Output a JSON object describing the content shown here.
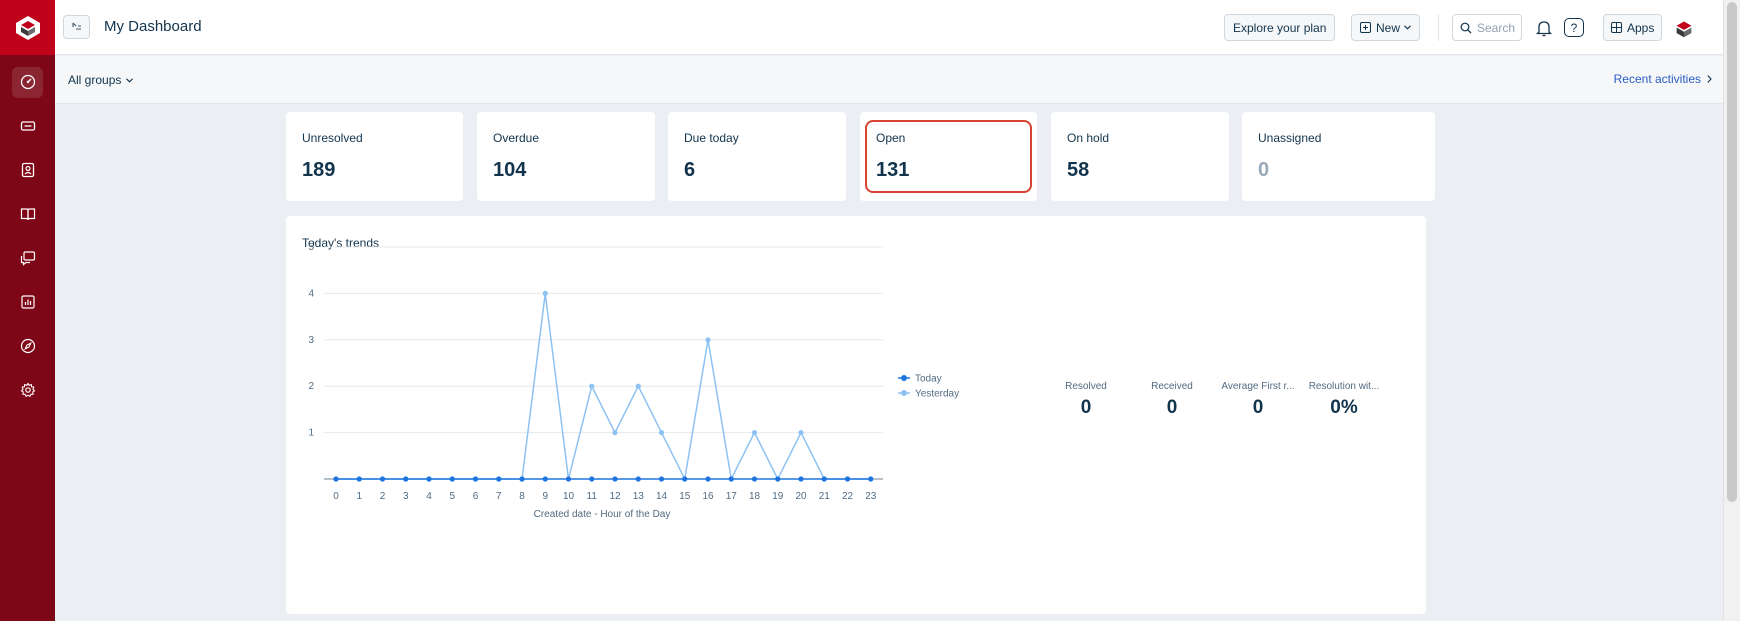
{
  "header": {
    "title": "My Dashboard",
    "explore_label": "Explore your plan",
    "new_label": "New",
    "search_placeholder": "Search",
    "help_label": "?",
    "apps_label": "Apps"
  },
  "subheader": {
    "group_filter": "All groups",
    "recent_label": "Recent activities"
  },
  "sidebar": {
    "items": [
      {
        "icon": "dashboard-icon",
        "active": true
      },
      {
        "icon": "tickets-icon"
      },
      {
        "icon": "contacts-icon"
      },
      {
        "icon": "solutions-icon"
      },
      {
        "icon": "forums-icon"
      },
      {
        "icon": "reports-icon"
      },
      {
        "icon": "discover-icon"
      },
      {
        "icon": "settings-icon"
      }
    ]
  },
  "metrics": [
    {
      "label": "Unresolved",
      "value": "189"
    },
    {
      "label": "Overdue",
      "value": "104"
    },
    {
      "label": "Due today",
      "value": "6"
    },
    {
      "label": "Open",
      "value": "131"
    },
    {
      "label": "On hold",
      "value": "58"
    },
    {
      "label": "Unassigned",
      "value": "0"
    }
  ],
  "trends": {
    "title": "Today's trends",
    "stats": [
      {
        "label": "Resolved",
        "value": "0"
      },
      {
        "label": "Received",
        "value": "0"
      },
      {
        "label": "Average First r...",
        "value": "0"
      },
      {
        "label": "Resolution wit...",
        "value": "0%"
      }
    ]
  },
  "colors": {
    "brand": "#c1021b",
    "rail": "#7d0716",
    "today": "#1f75e0",
    "yesterday": "#8ec2f2",
    "highlight": "#d7432f"
  },
  "chart_data": {
    "type": "line",
    "xlabel": "Created date - Hour of the Day",
    "ylabel": "",
    "ylim": [
      0,
      5
    ],
    "yticks": [
      1,
      2,
      3,
      4,
      5
    ],
    "x": [
      0,
      1,
      2,
      3,
      4,
      5,
      6,
      7,
      8,
      9,
      10,
      11,
      12,
      13,
      14,
      15,
      16,
      17,
      18,
      19,
      20,
      21,
      22,
      23
    ],
    "series": [
      {
        "name": "Today",
        "values": [
          0,
          0,
          0,
          0,
          0,
          0,
          0,
          0,
          0,
          0,
          0,
          0,
          0,
          0,
          0,
          0,
          0,
          0,
          0,
          0,
          0,
          0,
          0,
          0
        ]
      },
      {
        "name": "Yesterday",
        "values": [
          0,
          0,
          0,
          0,
          0,
          0,
          0,
          0,
          0,
          4,
          0,
          2,
          1,
          2,
          1,
          0,
          3,
          0,
          1,
          0,
          1,
          0,
          0,
          0
        ]
      }
    ],
    "legend": "right",
    "grid": true
  }
}
